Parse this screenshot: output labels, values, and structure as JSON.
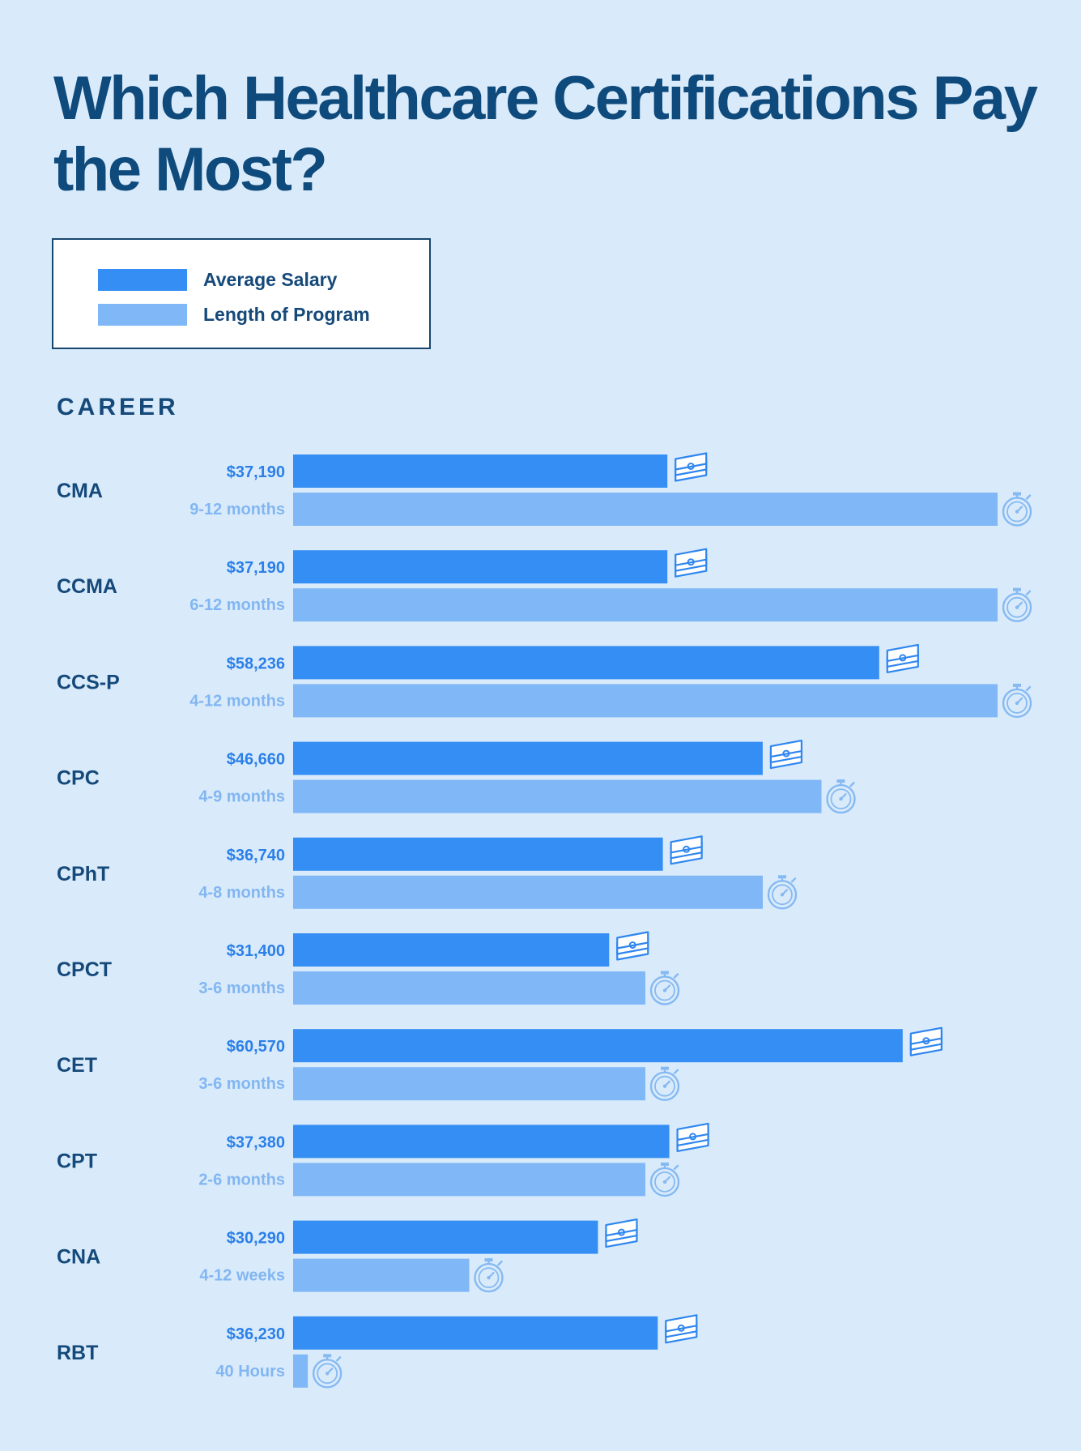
{
  "title": "Which Healthcare Certifications Pay the Most?",
  "legend": [
    {
      "label": "Average Salary",
      "color": "#358ef3"
    },
    {
      "label": "Length of Program",
      "color": "#80b7f6"
    }
  ],
  "section_label": "CAREER",
  "colors": {
    "background": "#d9ebfb",
    "salary_bar": "#358ef3",
    "length_bar": "#80b7f6",
    "career_text": "#15497a",
    "salary_text": "#2b7fe8",
    "length_text": "#82b6f2",
    "icon_money": "#2f86ef",
    "icon_timer": "#86b9f2"
  },
  "icons": {
    "salary": "money-stack-icon",
    "length": "stopwatch-icon"
  },
  "chart_data": {
    "type": "bar",
    "orientation": "horizontal",
    "title": "Which Healthcare Certifications Pay the Most?",
    "categories": [
      "CMA",
      "CCMA",
      "CCS-P",
      "CPC",
      "CPhT",
      "CPCT",
      "CET",
      "CPT",
      "CNA",
      "RBT"
    ],
    "series": [
      {
        "name": "Average Salary",
        "values": [
          37190,
          37190,
          58236,
          46660,
          36740,
          31400,
          60570,
          37380,
          30290,
          36230
        ],
        "labels": [
          "$37,190",
          "$37,190",
          "$58,236",
          "$46,660",
          "$36,740",
          "$31,400",
          "$60,570",
          "$37,380",
          "$30,290",
          "$36,230"
        ]
      },
      {
        "name": "Length of Program",
        "values_months": [
          12,
          12,
          12,
          9,
          8,
          6,
          6,
          6,
          3,
          0.25
        ],
        "labels": [
          "9-12 months",
          "6-12 months",
          "4-12 months",
          "4-9 months",
          "4-8 months",
          "3-6 months",
          "3-6 months",
          "2-6 months",
          "4-12 weeks",
          "40 Hours"
        ]
      }
    ],
    "xlim_salary": [
      0,
      70000
    ],
    "xlim_months": [
      0,
      12
    ],
    "grid": false,
    "legend_position": "top-left"
  }
}
